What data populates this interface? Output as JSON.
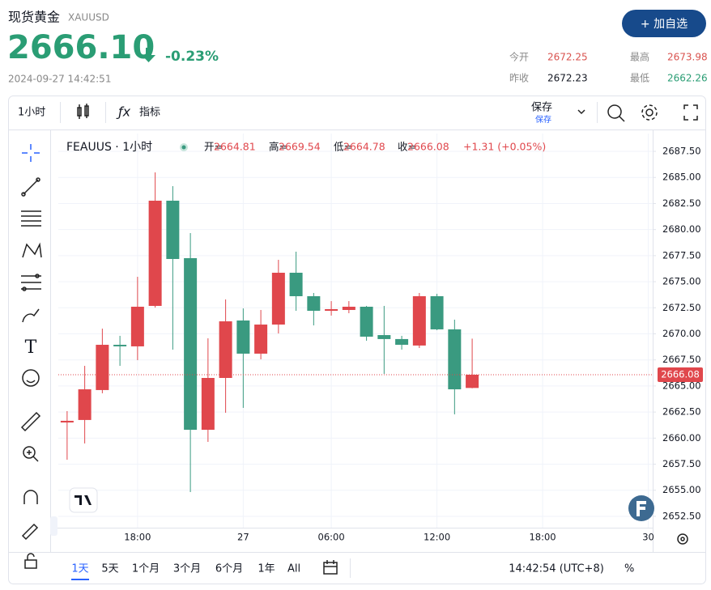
{
  "header": {
    "name": "现货黄金",
    "symbol": "XAUUSD",
    "price": "2666.10",
    "change": "-0.23%",
    "time": "2024-09-27 14:42:51",
    "button": "+ 加自选"
  },
  "stats": [
    {
      "label": "今开",
      "value": "2672.25"
    },
    {
      "label": "最高",
      "value": "2673.98"
    },
    {
      "label": "昨收",
      "value": "2672.23"
    },
    {
      "label": "最低",
      "value": "2662.26"
    }
  ],
  "toolbar": {
    "interval": "1小时",
    "indicators": "指标",
    "save": "保存",
    "save_sub": "保存"
  },
  "ranges": [
    "1天",
    "5天",
    "1个月",
    "3个月",
    "6个月",
    "1年",
    "All"
  ],
  "footer": {
    "clock": "14:42:54 (UTC+8)",
    "percent": "%"
  },
  "chart_data": {
    "type": "candlestick",
    "title": "FEAUUS · 1小时",
    "legend": {
      "open_label": "开=",
      "high_label": "高=",
      "low_label": "低=",
      "close_label": "收=",
      "change": "+1.31 (+0.05%)"
    },
    "x": [
      0,
      1,
      2,
      3,
      4,
      5,
      6,
      7,
      8,
      9,
      10,
      11,
      12,
      13,
      14,
      15,
      16,
      17,
      18,
      19,
      20,
      21,
      22,
      23
    ],
    "open": [
      2661.5,
      2661.74,
      2664.61,
      2668.95,
      2668.8,
      2672.68,
      2682.77,
      2677.26,
      2660.8,
      2665.77,
      2671.28,
      2668.1,
      2670.89,
      2675.86,
      2673.61,
      2672.21,
      2672.29,
      2672.6,
      2669.88,
      2669.5,
      2668.88,
      2673.61,
      2670.43,
      2664.81
    ],
    "high": [
      2662.59,
      2666.93,
      2670.5,
      2669.81,
      2675.47,
      2685.48,
      2684.16,
      2679.66,
      2669.57,
      2673.3,
      2672.44,
      2672.29,
      2677.1,
      2677.88,
      2673.92,
      2673.14,
      2673.14,
      2672.68,
      2672.68,
      2669.81,
      2673.92,
      2673.84,
      2671.36,
      2669.54
    ],
    "low": [
      2657.93,
      2659.49,
      2664.3,
      2666.93,
      2667.48,
      2672.52,
      2668.49,
      2654.83,
      2659.64,
      2662.43,
      2662.9,
      2667.56,
      2670.04,
      2672.21,
      2670.81,
      2671.75,
      2671.98,
      2669.34,
      2666.16,
      2668.49,
      2668.64,
      2670.35,
      2662.28,
      2664.78
    ],
    "close": [
      2661.66,
      2664.68,
      2668.95,
      2668.8,
      2672.6,
      2682.77,
      2677.18,
      2660.8,
      2665.77,
      2671.2,
      2668.1,
      2670.89,
      2675.86,
      2673.61,
      2672.21,
      2672.37,
      2672.6,
      2669.73,
      2669.5,
      2668.95,
      2673.61,
      2670.43,
      2664.68,
      2666.08
    ],
    "up_color": "#e0474c",
    "down_color": "#3a9a80",
    "xlim": [
      -0.5,
      33.25
    ],
    "xticks": [
      {
        "value": 4,
        "label": "18:00"
      },
      {
        "value": 10,
        "label": "27"
      },
      {
        "value": 15,
        "label": "06:00"
      },
      {
        "value": 21,
        "label": "12:00"
      },
      {
        "value": 27,
        "label": "18:00"
      },
      {
        "value": 33,
        "label": "30"
      }
    ],
    "ylim": [
      2651.41,
      2689.21
    ],
    "yticks": [
      {
        "value": 2652.5,
        "label": "2652.50"
      },
      {
        "value": 2655,
        "label": "2655.00"
      },
      {
        "value": 2657.5,
        "label": "2657.50"
      },
      {
        "value": 2660,
        "label": "2660.00"
      },
      {
        "value": 2662.5,
        "label": "2662.50"
      },
      {
        "value": 2665,
        "label": "2665.00"
      },
      {
        "value": 2667.5,
        "label": "2667.50"
      },
      {
        "value": 2670,
        "label": "2670.00"
      },
      {
        "value": 2672.5,
        "label": "2672.50"
      },
      {
        "value": 2675,
        "label": "2675.00"
      },
      {
        "value": 2677.5,
        "label": "2677.50"
      },
      {
        "value": 2680,
        "label": "2680.00"
      },
      {
        "value": 2682.5,
        "label": "2682.50"
      },
      {
        "value": 2685,
        "label": "2685.00"
      },
      {
        "value": 2687.5,
        "label": "2687.50"
      }
    ],
    "grid": true
  }
}
